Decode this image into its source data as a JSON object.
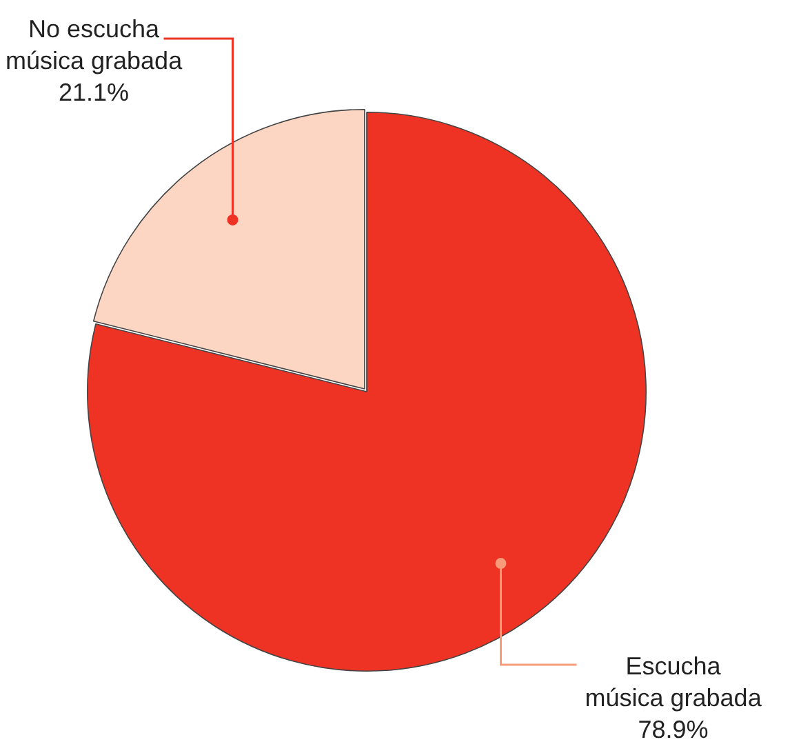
{
  "chart_data": {
    "type": "pie",
    "categories": [
      "Escucha\nmúsica grabada",
      "No escucha\nmúsica grabada"
    ],
    "values": [
      78.9,
      21.1
    ],
    "colors": [
      "#ee3224",
      "#fdd5c3"
    ],
    "value_labels": [
      "78.9%",
      "21.1%"
    ],
    "legend": false
  }
}
